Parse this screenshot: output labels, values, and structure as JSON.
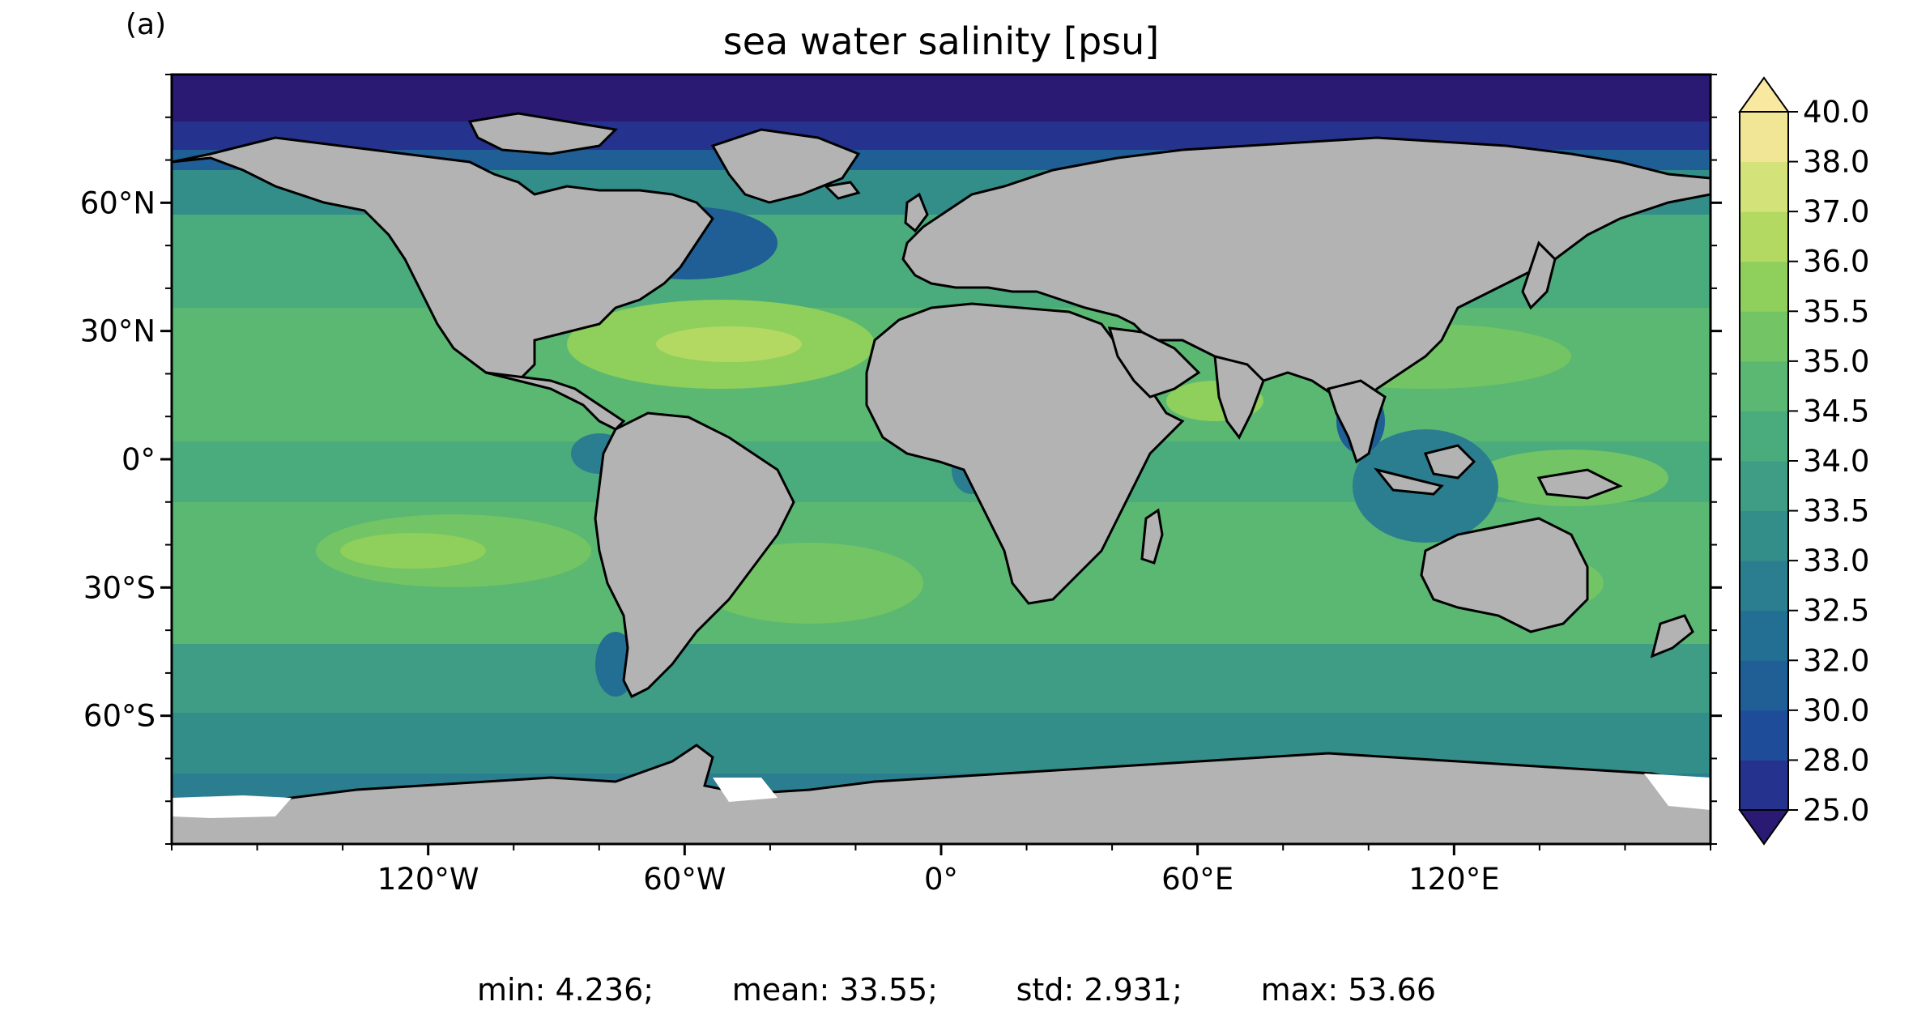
{
  "panel_label": "(a)",
  "title": "sea water salinity [psu]",
  "x_ticks": [
    {
      "lon": -120,
      "label": "120°W"
    },
    {
      "lon": -60,
      "label": "60°W"
    },
    {
      "lon": 0,
      "label": "0°"
    },
    {
      "lon": 60,
      "label": "60°E"
    },
    {
      "lon": 120,
      "label": "120°E"
    }
  ],
  "y_ticks": [
    {
      "lat": 60,
      "label": "60°N"
    },
    {
      "lat": 30,
      "label": "30°N"
    },
    {
      "lat": 0,
      "label": "0°"
    },
    {
      "lat": -30,
      "label": "30°S"
    },
    {
      "lat": -60,
      "label": "60°S"
    }
  ],
  "colorbar": {
    "levels": [
      "25.0",
      "28.0",
      "30.0",
      "32.0",
      "32.5",
      "33.0",
      "33.5",
      "34.0",
      "34.5",
      "35.0",
      "35.5",
      "36.0",
      "37.0",
      "38.0",
      "40.0"
    ],
    "colors": [
      "#2b1a73",
      "#25338f",
      "#1f4c99",
      "#1f5f96",
      "#236f93",
      "#2b7e8f",
      "#338e8a",
      "#3e9d84",
      "#4aab7c",
      "#5bb872",
      "#72c465",
      "#8fcf5b",
      "#b3d963",
      "#d4e27a",
      "#f0e695",
      "#f8e8a0"
    ],
    "extend": "both"
  },
  "stats": {
    "min": "min: 4.236;",
    "mean": "mean: 33.55;",
    "std": "std: 2.931;",
    "max": "max: 53.66"
  },
  "map": {
    "lon_range": [
      -180,
      180
    ],
    "lat_range": [
      -90,
      90
    ],
    "land_color": "#b3b3b3",
    "ice_color": "#ffffff",
    "ocean_base_color": "#4aab7c",
    "coast_color": "#000000"
  }
}
